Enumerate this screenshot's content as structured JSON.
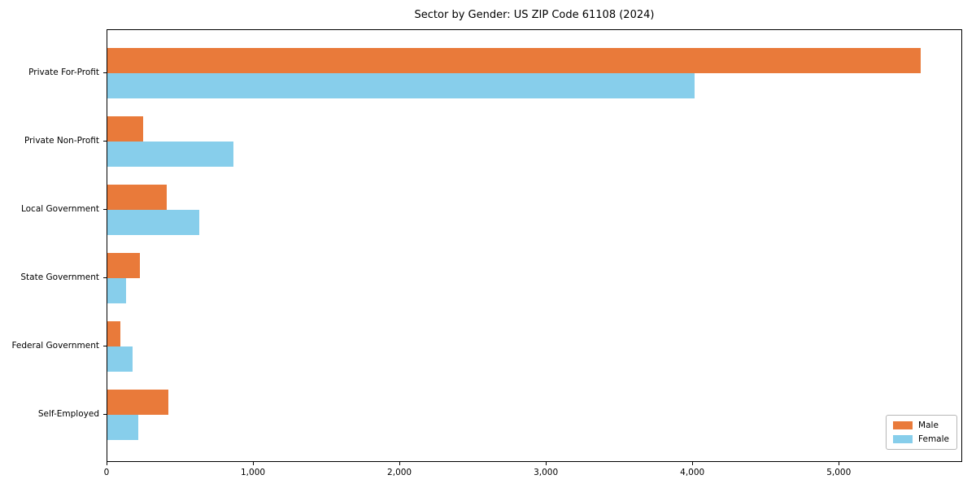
{
  "chart_data": {
    "type": "bar",
    "orientation": "horizontal",
    "title": "Sector by Gender: US ZIP Code 61108 (2024)",
    "categories": [
      "Private For-Profit",
      "Private Non-Profit",
      "Local Government",
      "State Government",
      "Federal Government",
      "Self-Employed"
    ],
    "series": [
      {
        "name": "Male",
        "color": "#e97a3a",
        "values": [
          5565,
          245,
          405,
          220,
          90,
          420
        ]
      },
      {
        "name": "Female",
        "color": "#87ceeb",
        "values": [
          4015,
          860,
          630,
          130,
          170,
          210
        ]
      }
    ],
    "xlabel": "",
    "ylabel": "",
    "xlim": [
      0,
      5843
    ],
    "xticks": [
      0,
      1000,
      2000,
      3000,
      4000,
      5000
    ],
    "grid": false,
    "legend": {
      "position": "lower right",
      "labels": [
        "Male",
        "Female"
      ]
    }
  }
}
